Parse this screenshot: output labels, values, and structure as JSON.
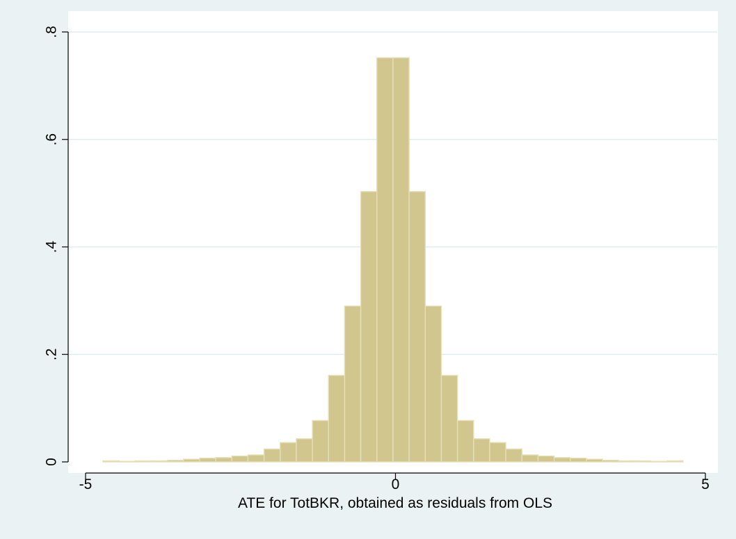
{
  "chart_data": {
    "type": "bar",
    "subtype": "histogram",
    "xlabel": "ATE for TotBKR, obtained as residuals from OLS",
    "ylabel": "",
    "title": "",
    "xlim": [
      -5,
      5
    ],
    "ylim": [
      0,
      0.8
    ],
    "xticks": [
      -5,
      0,
      5
    ],
    "xtick_labels": [
      "-5",
      "0",
      "5"
    ],
    "yticks": [
      0,
      0.2,
      0.4,
      0.6,
      0.8
    ],
    "ytick_labels": [
      "0",
      ".2",
      ".4",
      ".6",
      ".8"
    ],
    "grid": true,
    "legend": "none",
    "colors": {
      "bar_fill": "#d0c68e",
      "bar_edge": "#e6dfb8",
      "plot_bg": "#ffffff",
      "page_bg": "#eaf2f3",
      "grid": "#e0ecee"
    },
    "bins": [
      {
        "x0": -4.72,
        "x1": -4.46,
        "density": 0.002
      },
      {
        "x0": -4.46,
        "x1": -4.2,
        "density": 0.001
      },
      {
        "x0": -4.2,
        "x1": -3.94,
        "density": 0.002
      },
      {
        "x0": -3.94,
        "x1": -3.68,
        "density": 0.002
      },
      {
        "x0": -3.68,
        "x1": -3.42,
        "density": 0.003
      },
      {
        "x0": -3.42,
        "x1": -3.16,
        "density": 0.005
      },
      {
        "x0": -3.16,
        "x1": -2.9,
        "density": 0.007
      },
      {
        "x0": -2.9,
        "x1": -2.64,
        "density": 0.008
      },
      {
        "x0": -2.64,
        "x1": -2.38,
        "density": 0.011
      },
      {
        "x0": -2.38,
        "x1": -2.12,
        "density": 0.013
      },
      {
        "x0": -2.12,
        "x1": -1.86,
        "density": 0.024
      },
      {
        "x0": -1.86,
        "x1": -1.6,
        "density": 0.036
      },
      {
        "x0": -1.6,
        "x1": -1.34,
        "density": 0.043
      },
      {
        "x0": -1.34,
        "x1": -1.08,
        "density": 0.077
      },
      {
        "x0": -1.08,
        "x1": -0.82,
        "density": 0.161
      },
      {
        "x0": -0.82,
        "x1": -0.56,
        "density": 0.29
      },
      {
        "x0": -0.56,
        "x1": -0.3,
        "density": 0.503
      },
      {
        "x0": -0.3,
        "x1": -0.04,
        "density": 0.752
      },
      {
        "x0": -0.04,
        "x1": 0.22,
        "density": 0.752
      },
      {
        "x0": 0.22,
        "x1": 0.48,
        "density": 0.503
      },
      {
        "x0": 0.48,
        "x1": 0.74,
        "density": 0.29
      },
      {
        "x0": 0.74,
        "x1": 1.0,
        "density": 0.161
      },
      {
        "x0": 1.0,
        "x1": 1.26,
        "density": 0.077
      },
      {
        "x0": 1.26,
        "x1": 1.52,
        "density": 0.043
      },
      {
        "x0": 1.52,
        "x1": 1.78,
        "density": 0.036
      },
      {
        "x0": 1.78,
        "x1": 2.04,
        "density": 0.024
      },
      {
        "x0": 2.04,
        "x1": 2.3,
        "density": 0.013
      },
      {
        "x0": 2.3,
        "x1": 2.56,
        "density": 0.011
      },
      {
        "x0": 2.56,
        "x1": 2.82,
        "density": 0.008
      },
      {
        "x0": 2.82,
        "x1": 3.08,
        "density": 0.007
      },
      {
        "x0": 3.08,
        "x1": 3.34,
        "density": 0.005
      },
      {
        "x0": 3.34,
        "x1": 3.6,
        "density": 0.003
      },
      {
        "x0": 3.6,
        "x1": 3.86,
        "density": 0.002
      },
      {
        "x0": 3.86,
        "x1": 4.12,
        "density": 0.002
      },
      {
        "x0": 4.12,
        "x1": 4.38,
        "density": 0.001
      },
      {
        "x0": 4.38,
        "x1": 4.64,
        "density": 0.002
      }
    ]
  }
}
